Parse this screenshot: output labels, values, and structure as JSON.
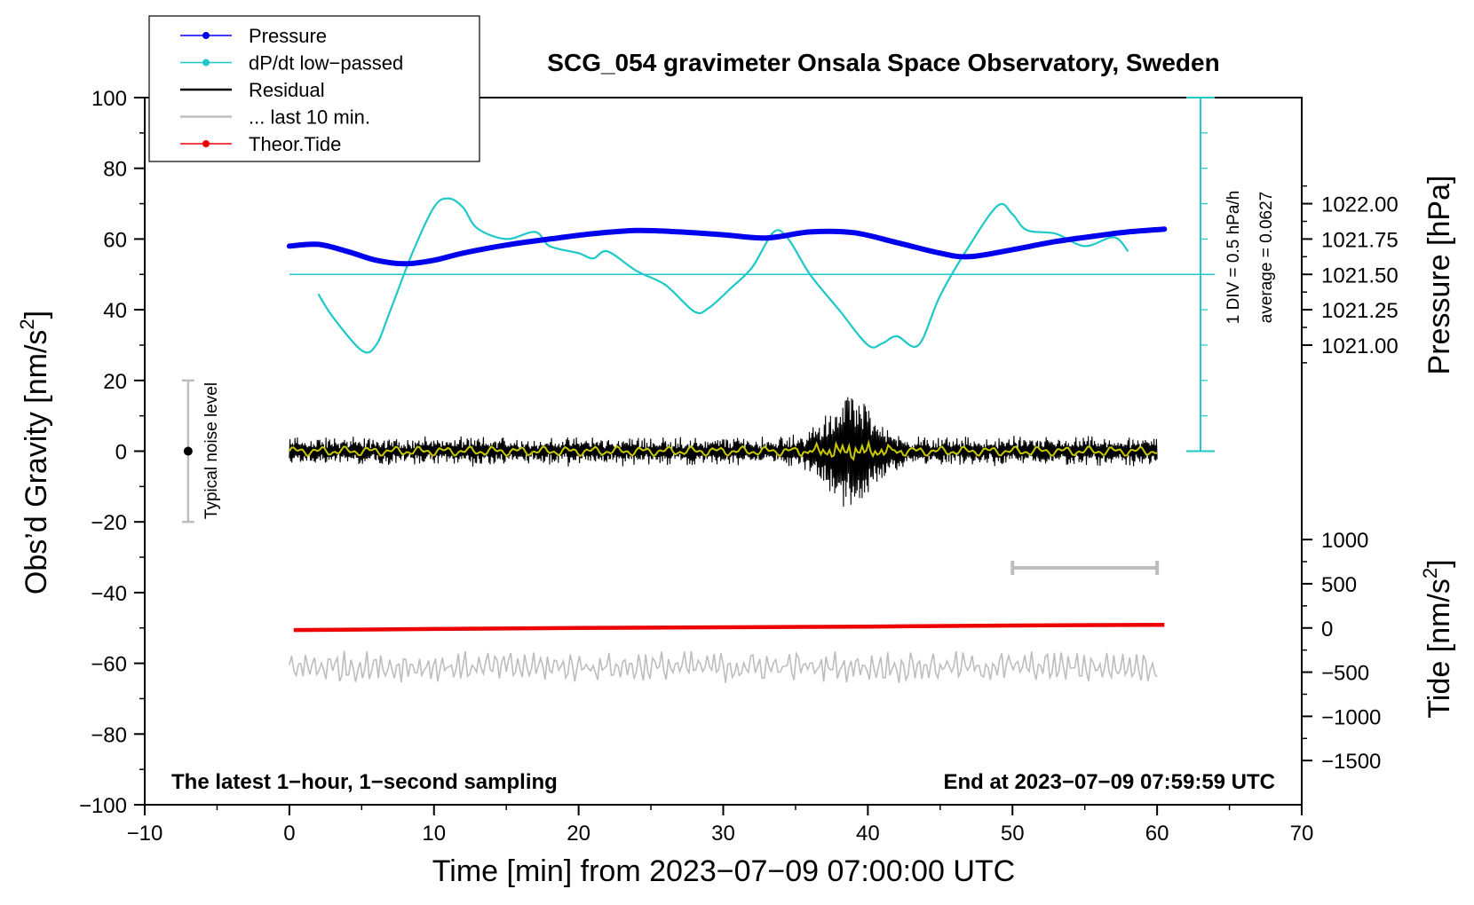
{
  "chart_data": {
    "type": "line",
    "title": "SCG_054 gravimeter Onsala Space Observatory, Sweden",
    "xlabel": "Time [min] from 2023−07−09 07:00:00 UTC",
    "ylabel": "Obs’d Gravity [nm/s",
    "ylabel_sup": "2",
    "ylabel_close": "]",
    "y2label": "Pressure [hPa]",
    "y3label": "Tide [nm/s",
    "y3label_sup": "2",
    "y3label_close": "]",
    "xlim": [
      -10,
      70
    ],
    "ylim": [
      -100,
      100
    ],
    "x_ticks": [
      -10,
      0,
      10,
      20,
      30,
      40,
      50,
      60,
      70
    ],
    "x_tick_labels": [
      "−10",
      "0",
      "10",
      "20",
      "30",
      "40",
      "50",
      "60",
      "70"
    ],
    "y_ticks": [
      -100,
      -80,
      -60,
      -40,
      -20,
      0,
      20,
      40,
      60,
      80,
      100
    ],
    "y_tick_labels": [
      "−100",
      "−80",
      "−60",
      "−40",
      "−20",
      "0",
      "20",
      "40",
      "60",
      "80",
      "100"
    ],
    "pressure_axis": {
      "ticks": [
        1021.0,
        1021.25,
        1021.5,
        1021.75,
        1022.0
      ],
      "tick_labels": [
        "1021.00",
        "1021.25",
        "1021.50",
        "1021.75",
        "1022.00"
      ],
      "mapping": {
        "hpa_at_y0": 1021.5,
        "left_units_per_hpa": 40,
        "zero_offset": 50
      }
    },
    "tide_axis": {
      "ticks": [
        -1500,
        -1000,
        -500,
        0,
        500,
        1000
      ],
      "tick_labels": [
        "−1500",
        "−1000",
        "−500",
        "0",
        "500",
        "1000"
      ],
      "mapping": {
        "left_units_per_tide": 0.025,
        "zero_offset": -50
      }
    },
    "legend": {
      "placement": "top-left",
      "entries": [
        {
          "label": "Pressure",
          "color": "#0000ee",
          "style": "line-dot"
        },
        {
          "label": "dP/dt low−passed",
          "color": "#1fc8c8",
          "style": "line-dot"
        },
        {
          "label": "Residual",
          "color": "#000000",
          "style": "line"
        },
        {
          "label": "... last 10 min.",
          "color": "#bdbdbd",
          "style": "line"
        },
        {
          "label": "Theor.Tide",
          "color": "#ee0000",
          "style": "line-dot"
        }
      ]
    },
    "annotations": {
      "bottom_left": "The latest 1−hour, 1−second sampling",
      "bottom_right": "End at 2023−07−09 07:59:59 UTC",
      "noise_label": "Typical noise level",
      "noise_range": [
        -20,
        20
      ],
      "noise_x": -7,
      "dpdt_scale": "1 DIV = 0.5 hPa/h",
      "dpdt_average": "average = 0.0627",
      "dpdt_baseline": 50,
      "dpdt_scale_x": 63,
      "dpdt_scale_range": [
        0,
        100
      ],
      "window_bar": [
        50,
        60
      ],
      "window_bar_y": -33
    },
    "series": [
      {
        "name": "Pressure",
        "color": "#0000ee",
        "x": [
          0,
          2,
          4,
          6,
          8,
          10,
          12,
          15,
          18,
          21,
          24,
          27,
          30,
          33,
          36,
          39,
          42,
          45,
          47,
          50,
          53,
          56,
          58,
          60.5
        ],
        "y": [
          58,
          58.5,
          56.5,
          54,
          53,
          54,
          56,
          58.3,
          60,
          61.5,
          62.4,
          62,
          61.2,
          60.3,
          62,
          61.8,
          59,
          56,
          55,
          57,
          59.3,
          61,
          62,
          62.8
        ]
      },
      {
        "name": "dP/dt low-passed",
        "color": "#1fc8c8",
        "x": [
          2,
          3,
          5,
          6,
          7,
          8.5,
          10,
          11,
          12,
          13,
          15,
          17,
          18,
          20,
          21,
          22,
          24,
          26,
          28,
          29,
          30.5,
          32,
          33.5,
          34.5,
          36,
          38,
          40,
          41,
          42,
          43.5,
          45,
          47,
          49,
          50,
          51,
          53,
          55,
          57,
          58
        ],
        "y": [
          44.5,
          38,
          28.5,
          30,
          40,
          56,
          69,
          71.5,
          69,
          63,
          60,
          62,
          58,
          56,
          54.5,
          56.5,
          51,
          47,
          39.5,
          40.5,
          46,
          52,
          62,
          60,
          50,
          40,
          30,
          30.5,
          32.5,
          30,
          44,
          58,
          69.5,
          67,
          62.5,
          61.5,
          58,
          60.5,
          56.5
        ]
      },
      {
        "name": "Theor.Tide",
        "color": "#ee0000",
        "x": [
          0.3,
          10,
          20,
          30,
          40,
          50,
          60.5
        ],
        "y": [
          -50.6,
          -50.3,
          -50,
          -49.8,
          -49.6,
          -49.3,
          -49.1
        ]
      }
    ],
    "residual": {
      "x_range": [
        0,
        60
      ],
      "baseline": 0,
      "noise_amplitude": 3,
      "burst_center": 38.8,
      "burst_width": 2.2,
      "burst_amplitude": 12.5
    },
    "last_10_min": {
      "x_range": [
        0,
        60
      ],
      "baseline": -61,
      "amplitude": 4
    }
  }
}
